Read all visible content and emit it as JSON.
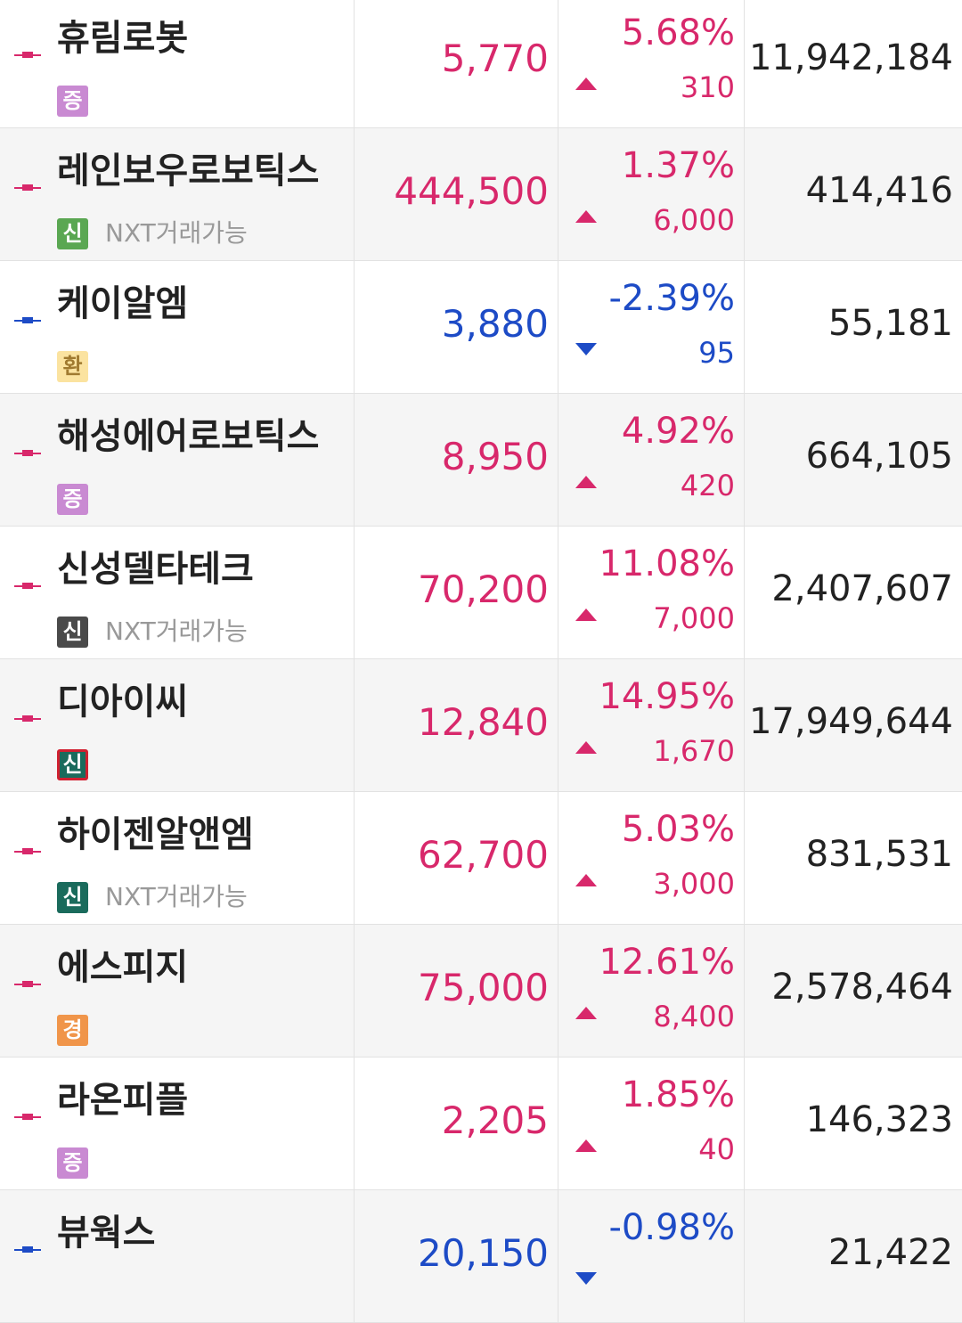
{
  "rows": [
    {
      "name": "휴림로봇",
      "badge": "증",
      "badge_style": "purple",
      "price": "5,770",
      "change_pct": "5.68%",
      "change": "310",
      "volume": "11,942,184",
      "direction": "up"
    },
    {
      "name": "레인보우로보틱스",
      "badge": "신",
      "badge_style": "green",
      "note": "NXT거래가능",
      "price": "444,500",
      "change_pct": "1.37%",
      "change": "6,000",
      "volume": "414,416",
      "direction": "up"
    },
    {
      "name": "케이알엠",
      "badge": "환",
      "badge_style": "yellow",
      "price": "3,880",
      "change_pct": "-2.39%",
      "change": "95",
      "volume": "55,181",
      "direction": "down"
    },
    {
      "name": "해성에어로보틱스",
      "badge": "증",
      "badge_style": "purple",
      "price": "8,950",
      "change_pct": "4.92%",
      "change": "420",
      "volume": "664,105",
      "direction": "up"
    },
    {
      "name": "신성델타테크",
      "badge": "신",
      "badge_style": "gray",
      "note": "NXT거래가능",
      "price": "70,200",
      "change_pct": "11.08%",
      "change": "7,000",
      "volume": "2,407,607",
      "direction": "up"
    },
    {
      "name": "디아이씨",
      "badge": "신",
      "badge_style": "teal-red",
      "price": "12,840",
      "change_pct": "14.95%",
      "change": "1,670",
      "volume": "17,949,644",
      "direction": "up"
    },
    {
      "name": "하이젠알앤엠",
      "badge": "신",
      "badge_style": "teal",
      "note": "NXT거래가능",
      "price": "62,700",
      "change_pct": "5.03%",
      "change": "3,000",
      "volume": "831,531",
      "direction": "up"
    },
    {
      "name": "에스피지",
      "badge": "경",
      "badge_style": "orange",
      "price": "75,000",
      "change_pct": "12.61%",
      "change": "8,400",
      "volume": "2,578,464",
      "direction": "up"
    },
    {
      "name": "라온피플",
      "badge": "증",
      "badge_style": "purple",
      "price": "2,205",
      "change_pct": "1.85%",
      "change": "40",
      "volume": "146,323",
      "direction": "up"
    },
    {
      "name": "뷰웍스",
      "price": "20,150",
      "change_pct": "-0.98%",
      "volume": "21,422",
      "direction": "down"
    }
  ]
}
